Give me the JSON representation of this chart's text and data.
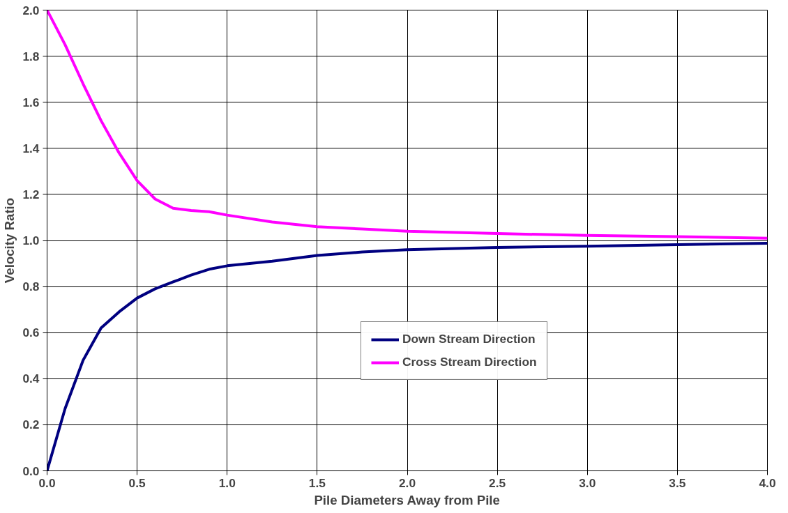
{
  "chart_data": {
    "type": "line",
    "xlabel": "Pile Diameters Away from Pile",
    "ylabel": "Velocity Ratio",
    "x": [
      0,
      0.1,
      0.2,
      0.3,
      0.4,
      0.5,
      0.6,
      0.7,
      0.8,
      0.9,
      1.0,
      1.25,
      1.5,
      1.75,
      2.0,
      2.5,
      3.0,
      3.5,
      4.0
    ],
    "series": [
      {
        "name": "Down Stream Direction",
        "color": "#000080",
        "values": [
          0,
          0.27,
          0.48,
          0.62,
          0.69,
          0.75,
          0.79,
          0.82,
          0.85,
          0.875,
          0.89,
          0.91,
          0.935,
          0.95,
          0.96,
          0.97,
          0.975,
          0.982,
          0.988
        ]
      },
      {
        "name": "Cross Stream Direction",
        "color": "#ff00ff",
        "values": [
          2.0,
          1.85,
          1.68,
          1.52,
          1.38,
          1.26,
          1.18,
          1.14,
          1.13,
          1.125,
          1.11,
          1.08,
          1.06,
          1.05,
          1.04,
          1.03,
          1.022,
          1.017,
          1.01
        ]
      }
    ],
    "xlim": [
      0,
      4
    ],
    "xticks": [
      {
        "value": 0,
        "label": "0.0"
      },
      {
        "value": 0.5,
        "label": "0.5"
      },
      {
        "value": 1,
        "label": "1.0"
      },
      {
        "value": 1.5,
        "label": "1.5"
      },
      {
        "value": 2,
        "label": "2.0"
      },
      {
        "value": 2.5,
        "label": "2.5"
      },
      {
        "value": 3,
        "label": "3.0"
      },
      {
        "value": 3.5,
        "label": "3.5"
      },
      {
        "value": 4,
        "label": "4.0"
      }
    ],
    "ylim": [
      0,
      2
    ],
    "yticks": [
      {
        "value": 0,
        "label": "0.0"
      },
      {
        "value": 0.2,
        "label": "0.2"
      },
      {
        "value": 0.4,
        "label": "0.4"
      },
      {
        "value": 0.6,
        "label": "0.6"
      },
      {
        "value": 0.8,
        "label": "0.8"
      },
      {
        "value": 1,
        "label": "1.0"
      },
      {
        "value": 1.2,
        "label": "1.2"
      },
      {
        "value": 1.4,
        "label": "1.4"
      },
      {
        "value": 1.6,
        "label": "1.6"
      },
      {
        "value": 1.8,
        "label": "1.8"
      },
      {
        "value": 2,
        "label": "2.0"
      }
    ],
    "grid": true,
    "legend": "center right",
    "marker": "none",
    "line_style": "solid"
  }
}
